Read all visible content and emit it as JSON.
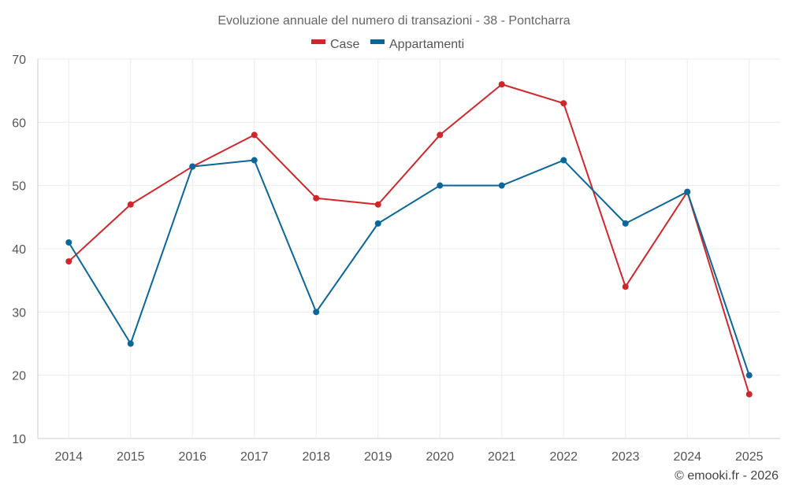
{
  "chart_data": {
    "type": "line",
    "title": "Evoluzione annuale del numero di transazioni - 38 - Pontcharra",
    "categories": [
      "2014",
      "2015",
      "2016",
      "2017",
      "2018",
      "2019",
      "2020",
      "2021",
      "2022",
      "2023",
      "2024",
      "2025"
    ],
    "series": [
      {
        "name": "Case",
        "color": "#d0272c",
        "values": [
          38,
          47,
          53,
          58,
          48,
          47,
          58,
          66,
          63,
          34,
          49,
          17
        ]
      },
      {
        "name": "Appartamenti",
        "color": "#0b6699",
        "values": [
          41,
          25,
          53,
          54,
          30,
          44,
          50,
          50,
          54,
          44,
          49,
          20
        ]
      }
    ],
    "ylim": [
      10,
      70
    ],
    "yticks": [
      10,
      20,
      30,
      40,
      50,
      60,
      70
    ],
    "xlabel": "",
    "ylabel": "",
    "grid": true,
    "legend_position": "top-center"
  },
  "credit": "© emooki.fr - 2026"
}
